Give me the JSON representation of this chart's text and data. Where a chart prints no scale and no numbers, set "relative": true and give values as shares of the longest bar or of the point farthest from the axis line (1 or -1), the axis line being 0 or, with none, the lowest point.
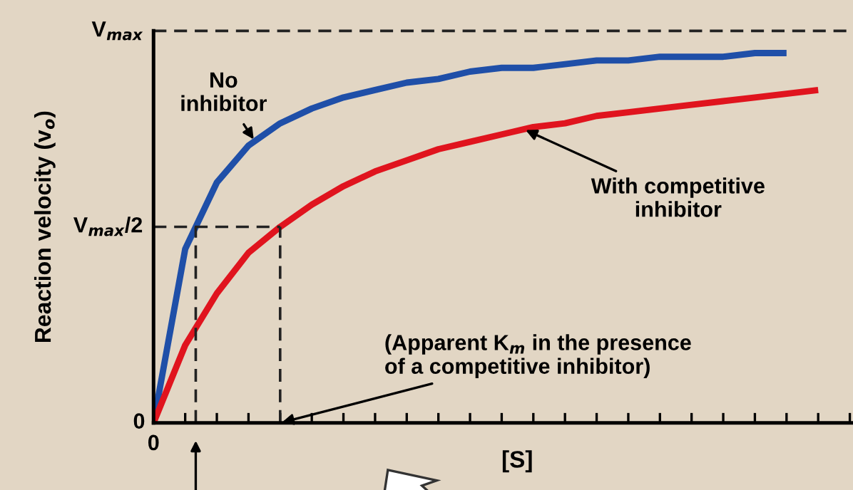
{
  "chart_data": {
    "type": "line",
    "relative": true,
    "xlabel": "[S]",
    "ylabel": "Reaction velocity (v$_{o}$)",
    "categories": [
      null,
      null,
      null,
      null,
      null,
      null,
      null,
      null,
      null,
      null,
      null,
      null,
      null,
      null,
      null,
      null,
      null,
      null,
      null,
      null,
      null,
      null,
      null
    ],
    "series": [
      {
        "color": "#1f4fa8",
        "values": [
          0,
          0.47,
          0.65,
          0.75,
          0.81,
          0.85,
          0.88,
          0.9,
          0.92,
          0.93,
          0.95,
          0.96,
          0.96,
          0.97,
          0.98,
          0.98,
          0.99,
          0.99,
          0.99,
          1,
          1,
          null,
          null
        ]
      },
      {
        "color": "#e0141e",
        "values": [
          0,
          0.21,
          0.35,
          0.46,
          0.53,
          0.59,
          0.64,
          0.68,
          0.71,
          0.74,
          0.76,
          0.78,
          0.8,
          0.81,
          0.83,
          0.84,
          0.85,
          0.86,
          0.87,
          0.88,
          0.89,
          0.9,
          null
        ]
      }
    ],
    "annotations": [
      "No\ninhibitor",
      "With competitive\ninhibitor",
      "(Apparent K$_{m}$ in the presence\nof a competitive inhibitor)",
      "V$_{max}$",
      "V$_{max}$/2",
      "0",
      "0"
    ]
  }
}
